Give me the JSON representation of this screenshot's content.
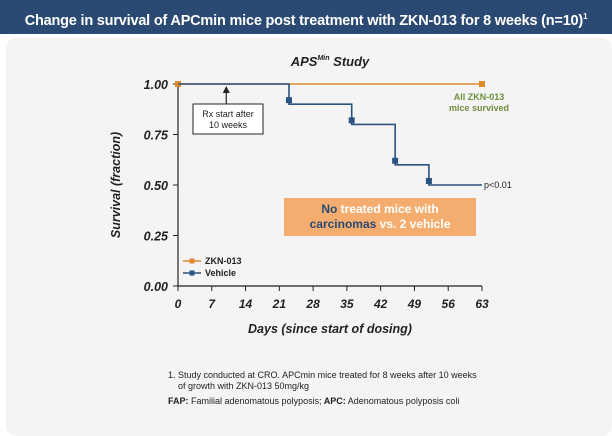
{
  "header": {
    "title": "Change in survival of APCmin mice post treatment with ZKN-013 for 8 weeks (n=10)",
    "title_sup": "1"
  },
  "chart_data": {
    "type": "line",
    "step": true,
    "title_main": "APS",
    "title_sup": "Min",
    "title_rest": " Study",
    "xlabel": "Days (since start of dosing)",
    "ylabel": "Survival (fraction)",
    "xlim": [
      0,
      63
    ],
    "ylim": [
      0,
      1
    ],
    "xticks": [
      0,
      7,
      14,
      21,
      28,
      35,
      42,
      49,
      56,
      63
    ],
    "yticks": [
      0.0,
      0.25,
      0.5,
      0.75,
      1.0
    ],
    "ytick_labels": [
      "0.00",
      "0.25",
      "0.50",
      "0.75",
      "1.00"
    ],
    "grid": false,
    "legend": "bottom-left",
    "series": [
      {
        "name": "ZKN-013",
        "color": "#e08a2e",
        "x": [
          0,
          63
        ],
        "y": [
          1.0,
          1.0
        ],
        "markers_x": [
          0,
          63
        ],
        "markers_y": [
          1.0,
          1.0
        ]
      },
      {
        "name": "Vehicle",
        "color": "#2b5280",
        "x": [
          0,
          23,
          36,
          45,
          52,
          63
        ],
        "y": [
          1.0,
          0.9,
          0.8,
          0.6,
          0.5,
          0.5
        ],
        "markers_x": [
          23,
          36,
          45,
          52
        ],
        "markers_y": [
          0.92,
          0.82,
          0.62,
          0.52
        ]
      }
    ],
    "annotations": {
      "rx_line1": "Rx start after",
      "rx_line2": "10 weeks",
      "rx_day": 10,
      "survived_line1": "All ZKN-013",
      "survived_line2": "mice survived",
      "pvalue": "p<0.01",
      "box_part1": "No",
      "box_part2": " treated mice with",
      "box_part3": "carcinomas",
      "box_part4": " vs. 2 vehicle"
    }
  },
  "footnotes": {
    "note1_line1": "1. Study conducted at CRO. APCmin mice treated for 8 weeks after 10 weeks",
    "note1_line2": "of growth with ZKN-013 50mg/kg",
    "fap_abbr": "FAP:",
    "fap_text": " Familial adenomatous polyposis;",
    "apc_abbr": " APC:",
    "apc_text": " Adenomatous polyposis coli"
  },
  "colors": {
    "banner": "#2b4a73",
    "zkn": "#e08a2e",
    "vehicle": "#2b5280",
    "survived_text": "#6f8f3c",
    "box_fill": "#f4ad6e",
    "box_dark": "#2b4a73",
    "box_white": "#ffffff"
  }
}
